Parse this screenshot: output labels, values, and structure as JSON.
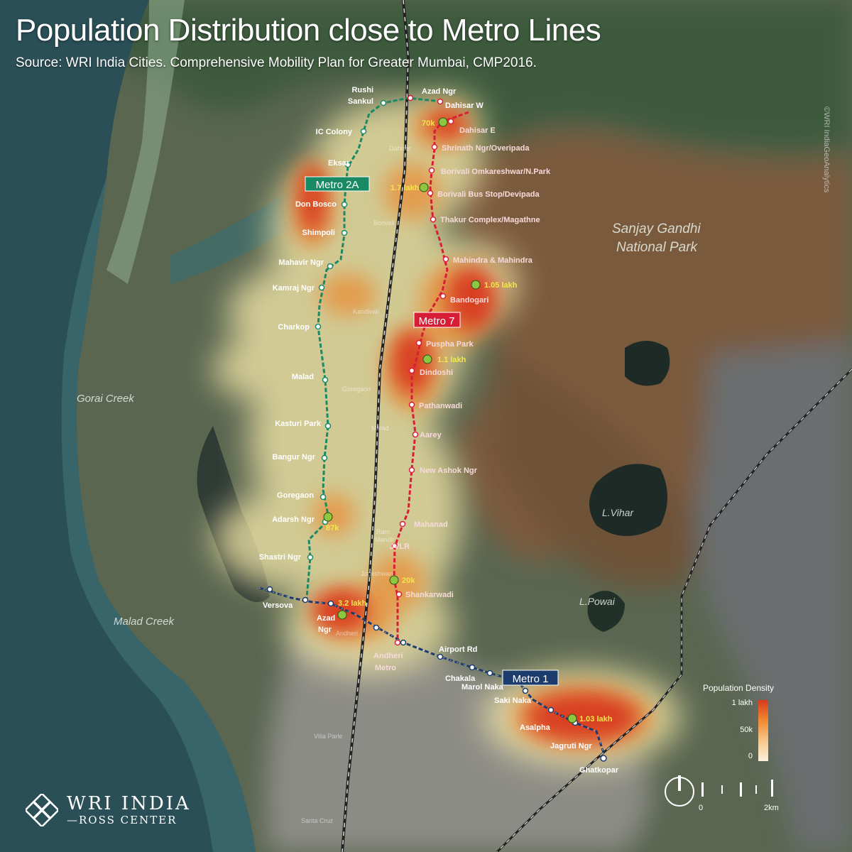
{
  "title": "Population Distribution close to Metro Lines",
  "subtitle": "Source: WRI India Cities. Comprehensive Mobility Plan for Greater Mumbai, CMP2016.",
  "copyright": "©WRI IndiaGeoAnalytics",
  "logo": {
    "line1": "WRI INDIA",
    "line2": "—ROSS CENTER"
  },
  "colors": {
    "metro2a": "#1a8a64",
    "metro7": "#d81e36",
    "metro1": "#1d3c6e",
    "heat_high": "#d83a1e",
    "heat_low": "#fdf0dc",
    "marker": "#8dc63f"
  },
  "place_labels": {
    "gorai": "Gorai Creek",
    "malad_creek": "Malad Creek",
    "sgnp1": "Sanjay Gandhi",
    "sgnp2": "National Park",
    "lvihar": "L.Vihar",
    "lpowai": "L.Powai",
    "dahisar": "Dahisar",
    "borivali": "Borivali",
    "kandivali": "Kandivali",
    "goregaon": "Goregaon",
    "malad": "Malad",
    "ram1": "Ram",
    "ram2": "Mandir",
    "jogeshwari": "Jogeshwari",
    "andheri": "Andheri",
    "vileparle": "Villa Parle",
    "santacruz": "Santa Cruz"
  },
  "lines": {
    "metro2a": "Metro 2A",
    "metro7": "Metro 7",
    "metro1": "Metro 1"
  },
  "stations_2a": {
    "rushi1": "Rushi",
    "rushi2": "Sankul",
    "iccolony": "IC Colony",
    "eksar": "Eksar",
    "donbosco": "Don Bosco",
    "shimpoli": "Shimpoli",
    "mahavir": "Mahavir Ngr",
    "kamraj": "Kamraj Ngr",
    "charkop": "Charkop",
    "malad": "Malad",
    "kasturi": "Kasturi Park",
    "bangur": "Bangur Ngr",
    "goregaon": "Goregaon",
    "adarsh": "Adarsh Ngr",
    "shastri": "Shastri Ngr"
  },
  "stations_7": {
    "azad": "Azad Ngr",
    "dahisarw": "Dahisar W",
    "dahisare": "Dahisar E",
    "shrinath": "Shrinath Ngr/Overipada",
    "omkar": "Borivali Omkareshwar/N.Park",
    "busstop": "Borivali Bus Stop/Devipada",
    "thakur": "Thakur Complex/Magathne",
    "mahindra": "Mahindra & Mahindra",
    "bandogari": "Bandogari",
    "puspha": "Puspha Park",
    "dindoshi": "Dindoshi",
    "pathan": "Pathanwadi",
    "aarey": "Aarey",
    "newashok": "New Ashok Ngr",
    "mahanad": "Mahanad",
    "jvlr": "JVLR",
    "shankar": "Shankarwadi",
    "andm1": "Andheri",
    "andm2": "Metro"
  },
  "stations_1": {
    "versova": "Versova",
    "azad1": "Azad",
    "azad2": "Ngr",
    "airport": "Airport Rd",
    "chakala": "Chakala",
    "marol": "Marol Naka",
    "saki": "Saki Naka",
    "asalpha": "Asalpha",
    "jagruti": "Jagruti Ngr",
    "ghatkopar": "Ghatkopar"
  },
  "hotspots": [
    {
      "label": "70k",
      "value": 70000
    },
    {
      "label": "1.7 lakh",
      "value": 170000
    },
    {
      "label": "1.05 lakh",
      "value": 105000
    },
    {
      "label": "1.1 lakh",
      "value": 110000
    },
    {
      "label": "87k",
      "value": 87000
    },
    {
      "label": "20k",
      "value": 20000
    },
    {
      "label": "3.2 lakh",
      "value": 320000
    },
    {
      "label": "1.03 lakh",
      "value": 103000
    }
  ],
  "legend": {
    "title": "Population Density",
    "max": "1 lakh",
    "mid": "50k",
    "min": "0"
  },
  "scale": {
    "start": "0",
    "end": "2km"
  }
}
